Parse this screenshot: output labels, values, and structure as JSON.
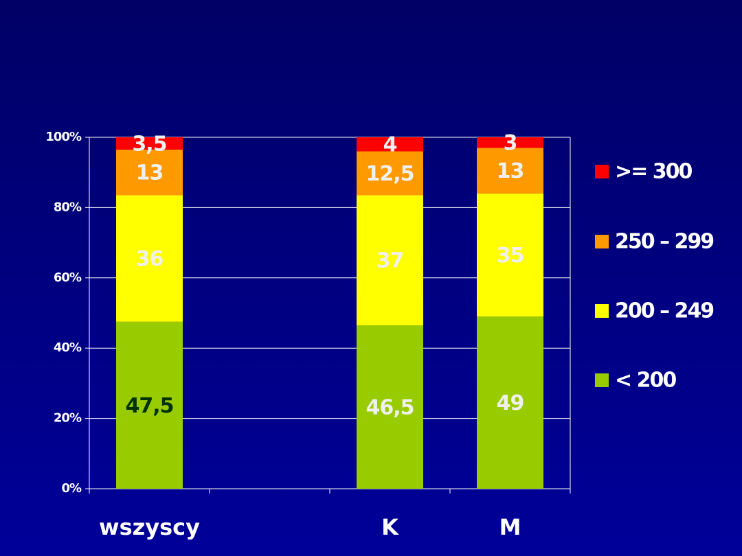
{
  "chart_data": {
    "type": "stacked_bar",
    "categories": [
      "wszyscy",
      null,
      "K",
      "M"
    ],
    "series": [
      {
        "name": "< 200",
        "color": "#99cc00",
        "values": [
          47.5,
          null,
          46.5,
          49
        ],
        "value_labels": [
          "47,5",
          null,
          "46,5",
          "49"
        ]
      },
      {
        "name": "200 – 249",
        "color": "#ffff00",
        "values": [
          36,
          null,
          37,
          35
        ],
        "value_labels": [
          "36",
          null,
          "37",
          "35"
        ]
      },
      {
        "name": "250 – 299",
        "color": "#ff9900",
        "values": [
          13,
          null,
          12.5,
          13
        ],
        "value_labels": [
          "13",
          null,
          "12,5",
          "13"
        ]
      },
      {
        "name": ">= 300",
        "color": "#ff0000",
        "values": [
          3.5,
          null,
          4,
          3
        ],
        "value_labels": [
          "3,5",
          null,
          "4",
          "3"
        ]
      }
    ],
    "ylim": [
      0,
      100
    ],
    "yticks": [
      {
        "value": 0,
        "label": "0%"
      },
      {
        "value": 20,
        "label": "20%"
      },
      {
        "value": 40,
        "label": "40%"
      },
      {
        "value": 60,
        "label": "60%"
      },
      {
        "value": 80,
        "label": "80%"
      },
      {
        "value": 100,
        "label": "100%"
      }
    ],
    "grid": true,
    "legend": "right"
  }
}
